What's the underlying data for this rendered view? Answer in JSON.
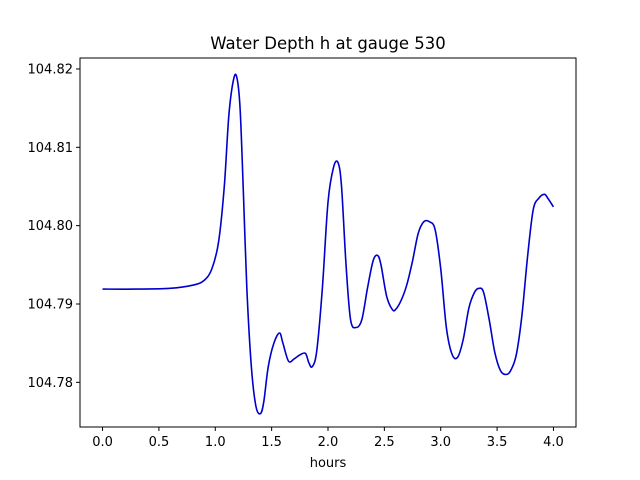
{
  "chart_data": {
    "type": "line",
    "title": "Water Depth h at gauge 530",
    "xlabel": "hours",
    "ylabel": "",
    "xlim": [
      -0.2,
      4.2
    ],
    "ylim": [
      104.7743,
      104.8214
    ],
    "xticks": [
      0.0,
      0.5,
      1.0,
      1.5,
      2.0,
      2.5,
      3.0,
      3.5,
      4.0
    ],
    "xtick_labels": [
      "0.0",
      "0.5",
      "1.0",
      "1.5",
      "2.0",
      "2.5",
      "3.0",
      "3.5",
      "4.0"
    ],
    "yticks": [
      104.78,
      104.79,
      104.8,
      104.81,
      104.82
    ],
    "ytick_labels": [
      "104.78",
      "104.79",
      "104.80",
      "104.81",
      "104.82"
    ],
    "grid": false,
    "series": [
      {
        "color": "#0000cc",
        "x": [
          0.0,
          0.3,
          0.6,
          0.8,
          0.9,
          0.97,
          1.03,
          1.08,
          1.12,
          1.16,
          1.19,
          1.22,
          1.25,
          1.28,
          1.32,
          1.36,
          1.4,
          1.43,
          1.47,
          1.52,
          1.57,
          1.6,
          1.65,
          1.7,
          1.75,
          1.8,
          1.83,
          1.86,
          1.9,
          1.95,
          2.0,
          2.05,
          2.09,
          2.12,
          2.16,
          2.2,
          2.25,
          2.3,
          2.35,
          2.4,
          2.44,
          2.47,
          2.52,
          2.57,
          2.6,
          2.65,
          2.7,
          2.75,
          2.8,
          2.85,
          2.9,
          2.95,
          3.0,
          3.05,
          3.1,
          3.15,
          3.2,
          3.25,
          3.3,
          3.34,
          3.38,
          3.43,
          3.48,
          3.53,
          3.58,
          3.62,
          3.67,
          3.72,
          3.77,
          3.82,
          3.87,
          3.92,
          3.95,
          4.0
        ],
        "y": [
          104.7919,
          104.7919,
          104.792,
          104.7924,
          104.793,
          104.7945,
          104.798,
          104.805,
          104.814,
          104.8185,
          104.819,
          104.815,
          104.804,
          104.792,
          104.782,
          104.777,
          104.776,
          104.7775,
          104.782,
          104.785,
          104.7863,
          104.785,
          104.7827,
          104.783,
          104.7835,
          104.7837,
          104.7825,
          104.782,
          104.784,
          104.792,
          104.803,
          104.8075,
          104.808,
          104.805,
          104.795,
          104.788,
          104.787,
          104.788,
          104.792,
          104.7955,
          104.7962,
          104.795,
          104.791,
          104.7893,
          104.7893,
          104.7905,
          104.7925,
          104.7955,
          104.799,
          104.8005,
          104.8005,
          104.7995,
          104.7945,
          104.787,
          104.7836,
          104.7832,
          104.7855,
          104.7895,
          104.7915,
          104.792,
          104.7915,
          104.788,
          104.7838,
          104.7815,
          104.781,
          104.7815,
          104.7835,
          104.7885,
          104.796,
          104.802,
          104.8035,
          104.804,
          104.8035,
          104.8024
        ]
      }
    ]
  }
}
